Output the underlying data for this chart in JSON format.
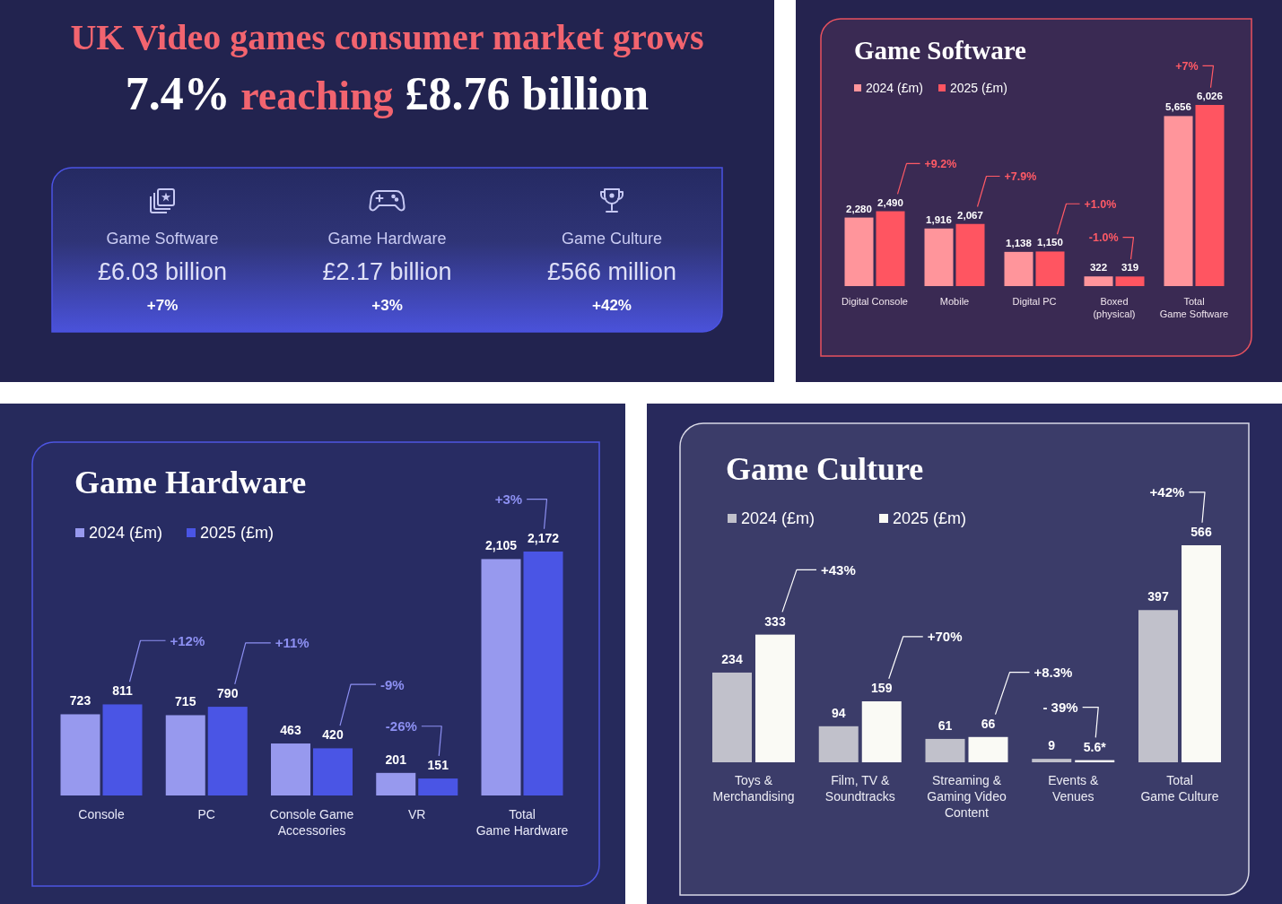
{
  "chart_data": [
    {
      "type": "other",
      "title": "UK Video games consumer market grows",
      "subtitle": "7.4% reaching £8.76 billion",
      "annotations": [
        "Game Software",
        "£6.03 billion",
        "+7%",
        "Game Hardware",
        "£2.17 billion",
        "+3%",
        "Game Culture",
        "£566 million",
        "+42%"
      ]
    },
    {
      "type": "bar",
      "title": "Game Software",
      "categories": [
        "Digital Console",
        "Mobile",
        "Digital PC",
        "Boxed\n(physical)",
        "Total\nGame Software"
      ],
      "series": [
        {
          "name": "2024 (£m)",
          "color": "#ff959b",
          "values": [
            2280,
            1916,
            1138,
            322,
            5656
          ],
          "value_labels": [
            "2,280",
            "1,916",
            "1,138",
            "322",
            "5,656"
          ]
        },
        {
          "name": "2025 (£m)",
          "color": "#ff5561",
          "values": [
            2490,
            2067,
            1150,
            319,
            6026
          ],
          "value_labels": [
            "2,490",
            "2,067",
            "1,150",
            "319",
            "6,026"
          ]
        }
      ],
      "legend": "top left",
      "tick_labels": "x",
      "annotations": [
        "+9.2%",
        "+7.9%",
        "+1.0%",
        "-1.0%",
        "+7%"
      ]
    },
    {
      "type": "bar",
      "title": "Game Hardware",
      "categories": [
        "Console",
        "PC",
        "Console Game\nAccessories",
        "VR",
        "Total\nGame Hardware"
      ],
      "series": [
        {
          "name": "2024 (£m)",
          "color": "#9799ee",
          "values": [
            723,
            715,
            463,
            201,
            2105
          ],
          "value_labels": [
            "723",
            "715",
            "463",
            "201",
            "2,105"
          ]
        },
        {
          "name": "2025 (£m)",
          "color": "#4a55e5",
          "values": [
            811,
            790,
            420,
            151,
            2172
          ],
          "value_labels": [
            "811",
            "790",
            "420",
            "151",
            "2,172"
          ]
        }
      ],
      "legend": "top left",
      "tick_labels": "x",
      "annotations": [
        "+12%",
        "+11%",
        "-9%",
        "-26%",
        "+3%"
      ]
    },
    {
      "type": "bar",
      "title": "Game Culture",
      "categories": [
        "Toys &\nMerchandising",
        "Film, TV &\nSoundtracks",
        "Streaming &\nGaming Video\nContent",
        "Events &\nVenues",
        "Total\nGame Culture"
      ],
      "series": [
        {
          "name": "2024 (£m)",
          "color": "#c1c1cb",
          "values": [
            234,
            94,
            61,
            9,
            397
          ],
          "value_labels": [
            "234",
            "94",
            "61",
            "9",
            "397"
          ]
        },
        {
          "name": "2025 (£m)",
          "color": "#fafaf5",
          "values": [
            333,
            159,
            66,
            5.6,
            566
          ],
          "value_labels": [
            "333",
            "159",
            "66",
            "5.6*",
            "566"
          ]
        }
      ],
      "legend": "top left",
      "tick_labels": "x",
      "annotations": [
        "+43%",
        "+70%",
        "+8.3%",
        "- 39%",
        "+42%"
      ]
    }
  ]
}
